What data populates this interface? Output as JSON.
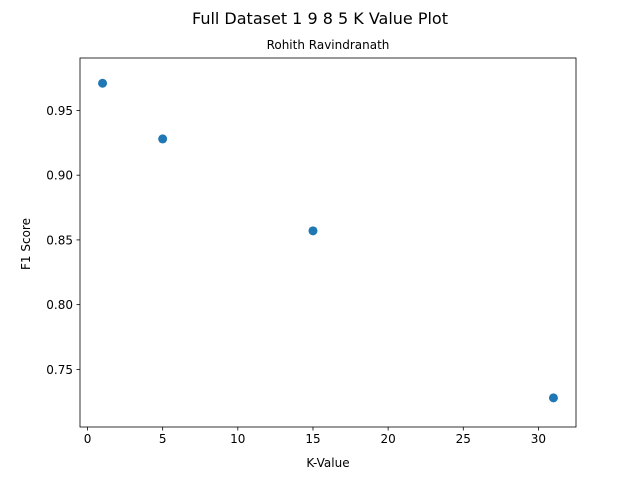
{
  "chart_data": {
    "type": "scatter",
    "title": "Full Dataset 1 9 8 5 K Value Plot",
    "subtitle": "Rohith Ravindranath",
    "xlabel": "K-Value",
    "ylabel": "F1 Score",
    "xlim": [
      -0.5,
      32.5
    ],
    "ylim": [
      0.7055,
      0.9905
    ],
    "xticks": [
      0,
      5,
      10,
      15,
      20,
      25,
      30
    ],
    "xtick_labels": [
      "0",
      "5",
      "10",
      "15",
      "20",
      "25",
      "30"
    ],
    "yticks": [
      0.75,
      0.8,
      0.85,
      0.9,
      0.95
    ],
    "ytick_labels": [
      "0.75",
      "0.80",
      "0.85",
      "0.90",
      "0.95"
    ],
    "grid": false,
    "legend": "none",
    "series": [
      {
        "color": "#1f77b4",
        "x": [
          1,
          5,
          15,
          31
        ],
        "y": [
          0.971,
          0.928,
          0.857,
          0.728
        ]
      }
    ]
  }
}
